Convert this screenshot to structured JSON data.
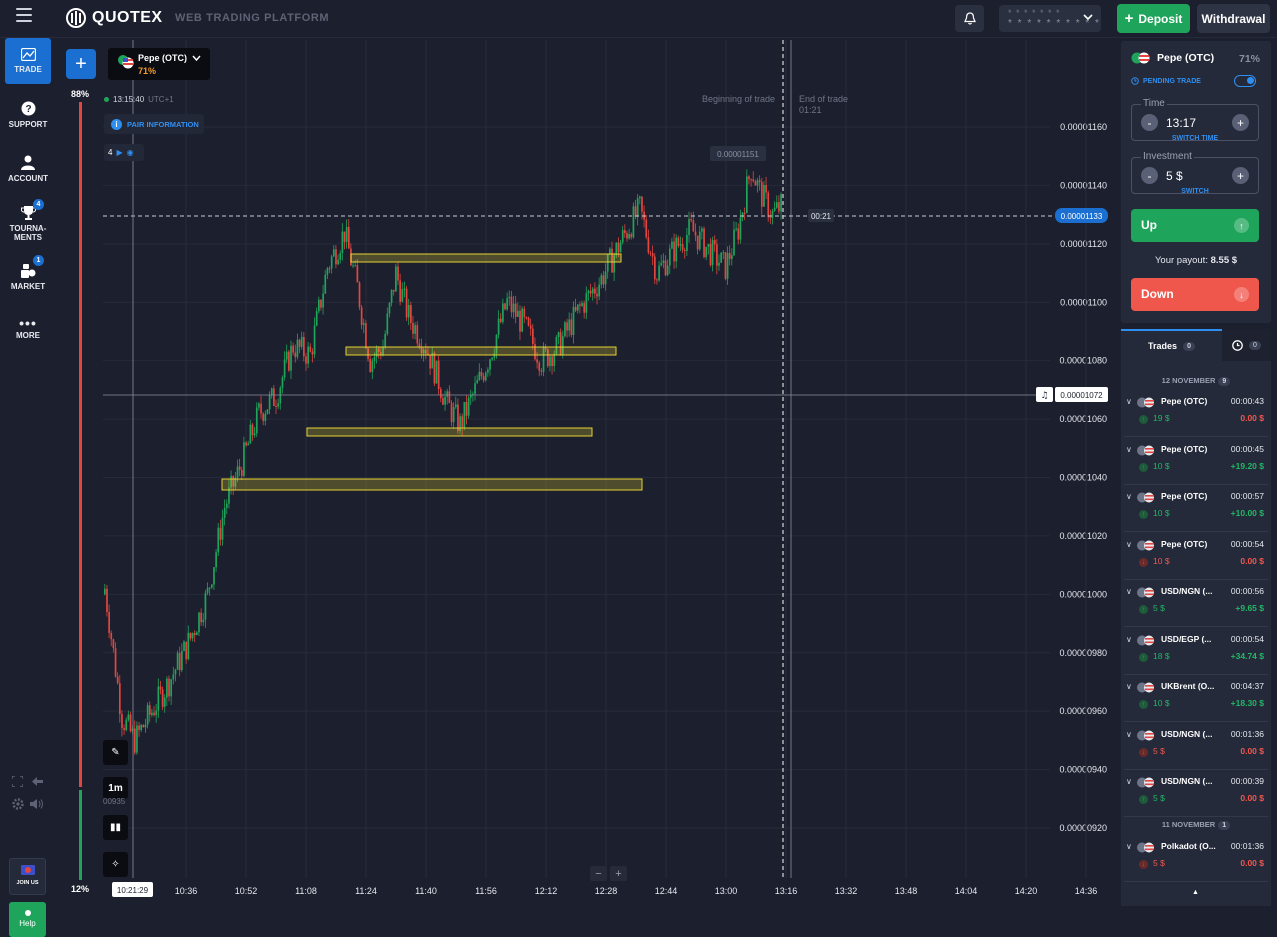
{
  "brand": {
    "name": "QUOTEX",
    "subtitle": "WEB TRADING PLATFORM"
  },
  "topbar": {
    "account_stars_top": "* * * * * * *",
    "account_stars_bottom": "* * * * * * * * * *",
    "deposit_label": "Deposit",
    "withdraw_label": "Withdrawal"
  },
  "nav": {
    "trade": "TRADE",
    "support": "SUPPORT",
    "account": "ACCOUNT",
    "tournaments": "TOURNA-MENTS",
    "tournaments_badge": "4",
    "market": "MARKET",
    "market_badge": "1",
    "more": "MORE",
    "joinus": "JOIN US",
    "help": "Help"
  },
  "sentiment": {
    "up_pct": "88%",
    "down_pct": "12%",
    "up_fraction": 0.88
  },
  "chart": {
    "asset": "Pepe (OTC)",
    "asset_pct": "71%",
    "clock": "13:15:40",
    "timezone": "UTC+1",
    "pair_info": "PAIR INFORMATION",
    "indicator_count": "4",
    "timeframe": "1m",
    "beginning_label": "Beginning of trade",
    "end_label": "End of trade",
    "end_time": "01:21",
    "countdown": "00:21",
    "current_price": "0.00001133",
    "crosshair_price": "0.00001072",
    "peak_price": "0.00001151",
    "left_price_cut": "00935",
    "time_cursor": "10:21:29",
    "price_ticks": [
      "0.00001160",
      "0.00001140",
      "0.00001120",
      "0.00001100",
      "0.00001080",
      "0.00001060",
      "0.00001040",
      "0.00001020",
      "0.00001000",
      "0.00000980",
      "0.00000960",
      "0.00000940",
      "0.00000920"
    ],
    "time_ticks": [
      "10:36",
      "10:52",
      "11:08",
      "11:24",
      "11:40",
      "11:56",
      "12:12",
      "12:28",
      "12:44",
      "13:00",
      "13:16",
      "13:32",
      "13:48",
      "14:04",
      "14:20",
      "14:36"
    ],
    "zoom_out": "−",
    "zoom_in": "+"
  },
  "panel": {
    "asset": "Pepe (OTC)",
    "pct": "71%",
    "pending": "PENDING TRADE",
    "time_label": "Time",
    "time_value": "13:17",
    "time_sub": "SWITCH TIME",
    "inv_label": "Investment",
    "inv_value": "5 $",
    "inv_sub": "SWITCH",
    "minus": "-",
    "plus": "+",
    "up": "Up",
    "down": "Down",
    "payout_label": "Your payout:",
    "payout_value": "8.55 $"
  },
  "trades": {
    "tab_label": "Trades",
    "tab_count": "0",
    "hist_count": "0",
    "date1": "12 NOVEMBER",
    "date1_count": "9",
    "date2": "11 NOVEMBER",
    "date2_count": "1",
    "items": [
      {
        "name": "Pepe (OTC)",
        "time": "00:00:43",
        "amount": "19 $",
        "result": "0.00 $",
        "dir": "up",
        "win": false
      },
      {
        "name": "Pepe (OTC)",
        "time": "00:00:45",
        "amount": "10 $",
        "result": "+19.20 $",
        "dir": "up",
        "win": true
      },
      {
        "name": "Pepe (OTC)",
        "time": "00:00:57",
        "amount": "10 $",
        "result": "+10.00 $",
        "dir": "up",
        "win": true
      },
      {
        "name": "Pepe (OTC)",
        "time": "00:00:54",
        "amount": "10 $",
        "result": "0.00 $",
        "dir": "down",
        "win": false
      },
      {
        "name": "USD/NGN (...",
        "time": "00:00:56",
        "amount": "5 $",
        "result": "+9.65 $",
        "dir": "up",
        "win": true
      },
      {
        "name": "USD/EGP (...",
        "time": "00:00:54",
        "amount": "18 $",
        "result": "+34.74 $",
        "dir": "up",
        "win": true
      },
      {
        "name": "UKBrent (O...",
        "time": "00:04:37",
        "amount": "10 $",
        "result": "+18.30 $",
        "dir": "up",
        "win": true
      },
      {
        "name": "USD/NGN (...",
        "time": "00:01:36",
        "amount": "5 $",
        "result": "0.00 $",
        "dir": "down",
        "win": false
      },
      {
        "name": "USD/NGN (...",
        "time": "00:00:39",
        "amount": "5 $",
        "result": "0.00 $",
        "dir": "up",
        "win": false
      },
      {
        "name": "Polkadot (O...",
        "time": "00:01:36",
        "amount": "5 $",
        "result": "0.00 $",
        "dir": "down",
        "win": false
      }
    ]
  },
  "colors": {
    "accent": "#1b6fd1",
    "up": "#1fa55b",
    "down": "#f0574c",
    "level": "#e6d234"
  }
}
